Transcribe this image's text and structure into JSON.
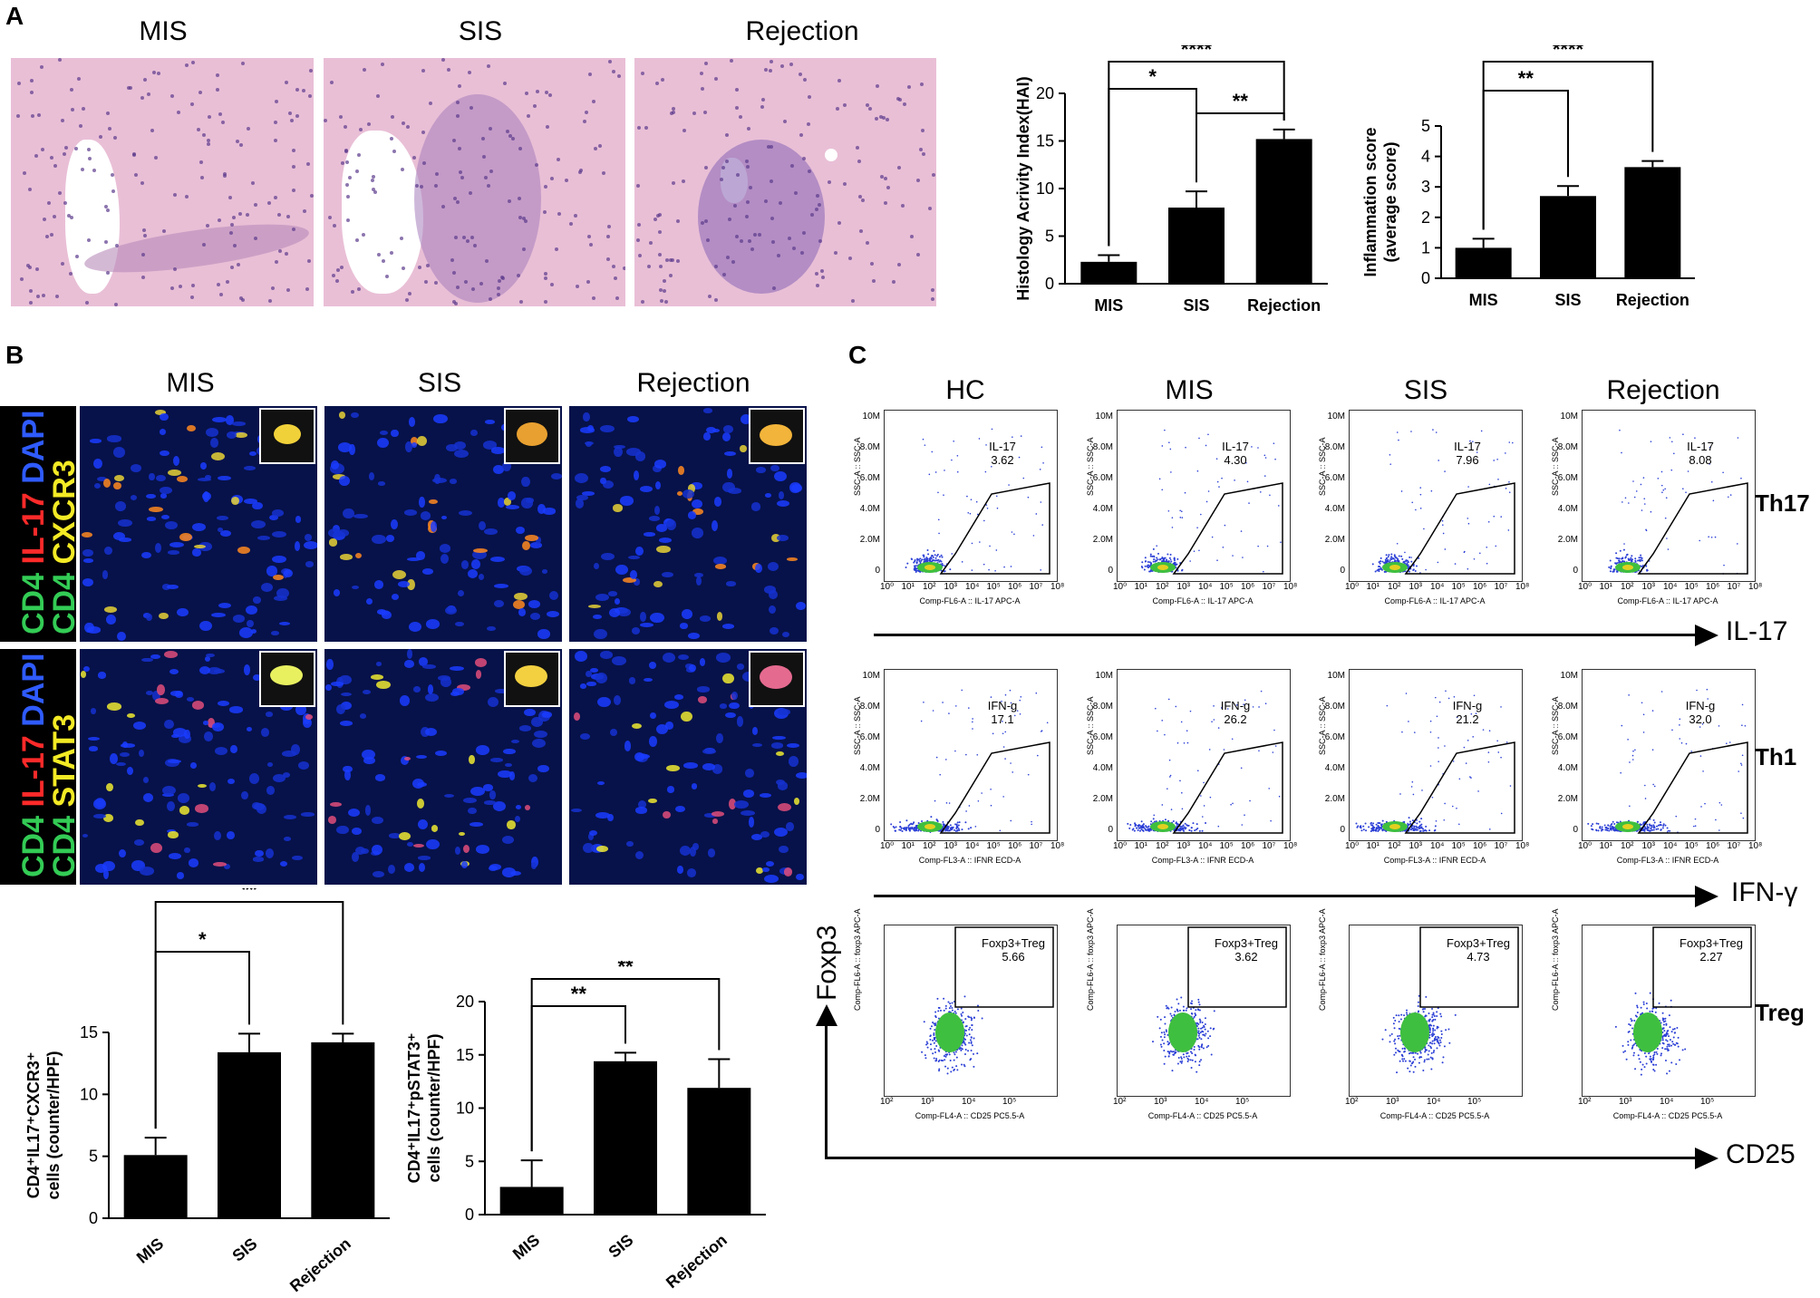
{
  "panel_a": {
    "label": "A",
    "titles": [
      "MIS",
      "SIS",
      "Rejection"
    ]
  },
  "panel_b": {
    "label": "B",
    "titles": [
      "MIS",
      "SIS",
      "Rejection"
    ],
    "row1_stain": {
      "cd4": "CD4",
      "il17": "IL-17",
      "dapi": "DAPI",
      "marker": "CXCR3"
    },
    "row2_stain": {
      "cd4": "CD4",
      "il17": "IL-17",
      "dapi": "DAPI",
      "marker": "STAT3"
    }
  },
  "panel_c": {
    "label": "C",
    "titles": [
      "HC",
      "MIS",
      "SIS",
      "Rejection"
    ],
    "rows": [
      {
        "name": "Th17",
        "gate": "IL-17",
        "values": [
          "3.62",
          "4.30",
          "7.96",
          "8.08"
        ],
        "x_axis": "Comp-FL6-A :: IL-17 APC-A",
        "y_axis": "SSC-A :: SSC-A",
        "axis_label": "IL-17"
      },
      {
        "name": "Th1",
        "gate": "IFN-g",
        "values": [
          "17.1",
          "26.2",
          "21.2",
          "32.0"
        ],
        "x_axis": "Comp-FL3-A :: IFNR ECD-A",
        "y_axis": "SSC-A :: SSC-A",
        "axis_label": "IFN-γ"
      },
      {
        "name": "Treg",
        "gate": "Foxp3+Treg",
        "values": [
          "5.66",
          "3.62",
          "4.73",
          "2.27"
        ],
        "x_axis": "Comp-FL4-A :: CD25 PC5.5-A",
        "y_axis": "Comp-FL6-A :: foxp3 APC-A",
        "axis_label": "CD25"
      }
    ],
    "y_axis_label": "Foxp3",
    "ssc_ticks": [
      "10M",
      "8.0M",
      "6.0M",
      "4.0M",
      "2.0M",
      "0"
    ],
    "log_ticks": [
      "10⁰",
      "10¹",
      "10²",
      "10³",
      "10⁴",
      "10⁵",
      "10⁶",
      "10⁷",
      "10⁸"
    ],
    "colors": {
      "dots": "#2b3fd6",
      "core": "#3fbf3f",
      "hot": "#e2d020"
    }
  },
  "chart_data": [
    {
      "type": "bar",
      "categories": [
        "MIS",
        "SIS",
        "Rejection"
      ],
      "values": [
        2.3,
        8.0,
        15.2
      ],
      "errors": [
        0.7,
        1.7,
        1.0
      ],
      "ylabel": "Histology Acrivity Index(HAI)",
      "ylim": [
        0,
        20
      ],
      "yticks": [
        "0",
        "5",
        "10",
        "15",
        "20"
      ],
      "significance": [
        {
          "from": "MIS",
          "to": "SIS",
          "label": "*"
        },
        {
          "from": "SIS",
          "to": "Rejection",
          "label": "**"
        },
        {
          "from": "MIS",
          "to": "Rejection",
          "label": "****"
        }
      ]
    },
    {
      "type": "bar",
      "categories": [
        "MIS",
        "SIS",
        "Rejection"
      ],
      "values": [
        1.0,
        2.7,
        3.65
      ],
      "errors": [
        0.3,
        0.33,
        0.2
      ],
      "ylabel": "Inflammation score\n(average score)",
      "ylim": [
        0,
        5
      ],
      "yticks": [
        "0",
        "1",
        "2",
        "3",
        "4",
        "5"
      ],
      "significance": [
        {
          "from": "MIS",
          "to": "SIS",
          "label": "**"
        },
        {
          "from": "MIS",
          "to": "Rejection",
          "label": "****"
        }
      ]
    },
    {
      "type": "bar",
      "categories": [
        "MIS",
        "SIS",
        "Rejection"
      ],
      "values": [
        5.1,
        13.4,
        14.2
      ],
      "errors": [
        1.4,
        1.5,
        0.7
      ],
      "ylabel": "CD4⁺IL17⁺CXCR3⁺\ncells (counter/HPF)",
      "ylim": [
        0,
        15
      ],
      "yticks": [
        "0",
        "5",
        "10",
        "15"
      ],
      "significance": [
        {
          "from": "MIS",
          "to": "SIS",
          "label": "*"
        },
        {
          "from": "MIS",
          "to": "Rejection",
          "label": "**"
        }
      ]
    },
    {
      "type": "bar",
      "categories": [
        "MIS",
        "SIS",
        "Rejection"
      ],
      "values": [
        2.6,
        14.4,
        11.9
      ],
      "errors": [
        2.5,
        0.8,
        2.7
      ],
      "ylabel": "CD4⁺IL17⁺pSTAT3⁺\ncells (counter/HPF)",
      "ylim": [
        0,
        20
      ],
      "yticks": [
        "0",
        "5",
        "10",
        "15",
        "20"
      ],
      "significance": [
        {
          "from": "MIS",
          "to": "SIS",
          "label": "**"
        },
        {
          "from": "MIS",
          "to": "Rejection",
          "label": "**"
        }
      ]
    }
  ]
}
